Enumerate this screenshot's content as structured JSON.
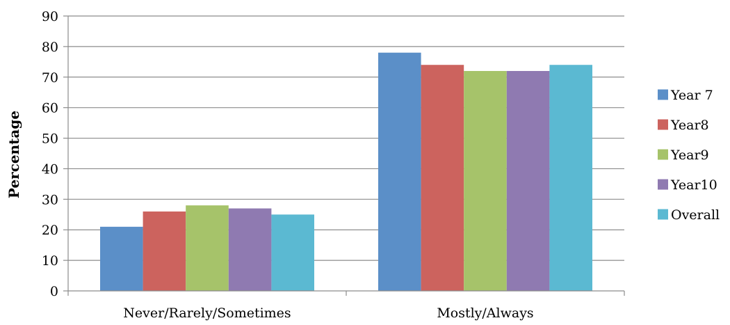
{
  "chart_data": {
    "type": "bar",
    "ylabel": "Percentage",
    "xlabel": "",
    "ylim": [
      0,
      90
    ],
    "ytick_step": 10,
    "grid": true,
    "legend_position": "right",
    "categories": [
      "Never/Rarely/Sometimes",
      "Mostly/Always"
    ],
    "series": [
      {
        "name": "Year 7",
        "color": "#5B8FC8",
        "values": [
          21,
          78
        ]
      },
      {
        "name": "Year8",
        "color": "#CC635E",
        "values": [
          26,
          74
        ]
      },
      {
        "name": "Year9",
        "color": "#A6C36A",
        "values": [
          28,
          72
        ]
      },
      {
        "name": "Year10",
        "color": "#8F7AB1",
        "values": [
          27,
          72
        ]
      },
      {
        "name": "Overall",
        "color": "#5BB9D2",
        "values": [
          25,
          74
        ]
      }
    ]
  }
}
